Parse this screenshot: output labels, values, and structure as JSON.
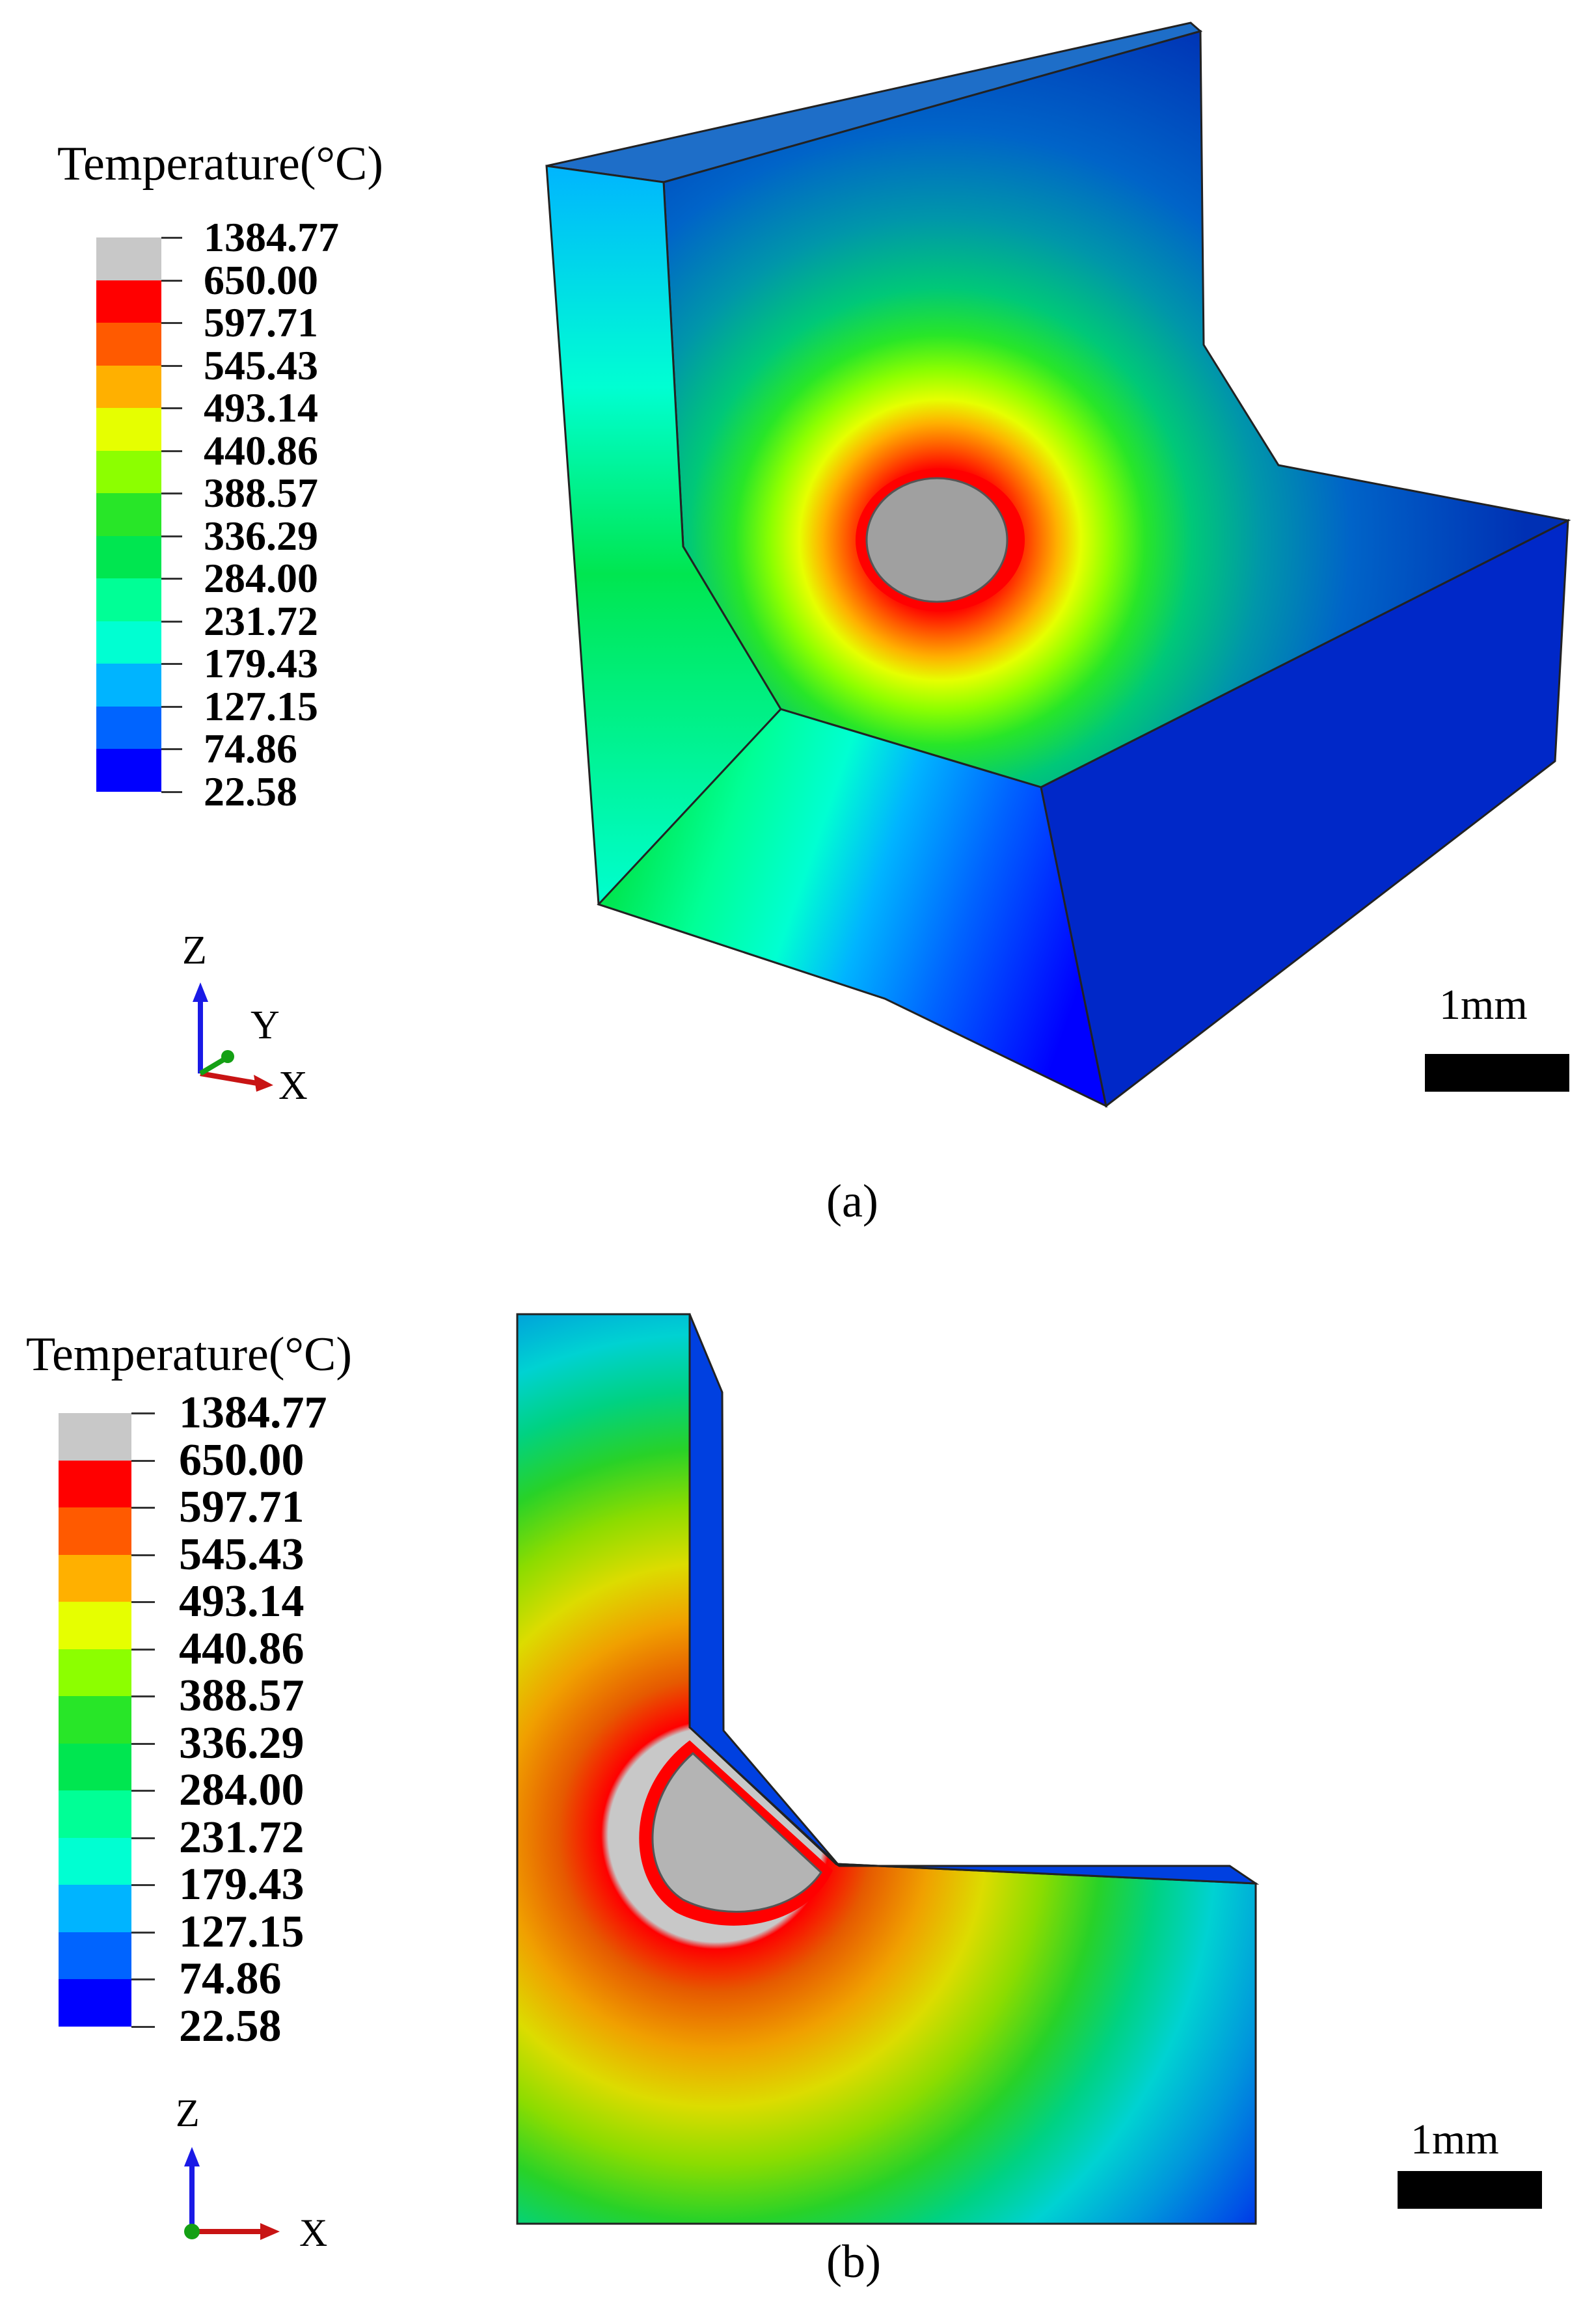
{
  "legend": {
    "title": "Temperature(°C)",
    "values": [
      "1384.77",
      "650.00",
      "597.71",
      "545.43",
      "493.14",
      "440.86",
      "388.57",
      "336.29",
      "284.00",
      "231.72",
      "179.43",
      "127.15",
      "74.86",
      "22.58"
    ],
    "colors": [
      "#c8c8c8",
      "#ff0000",
      "#ff5a00",
      "#ffb000",
      "#e6ff00",
      "#8cff00",
      "#28e628",
      "#00e650",
      "#00ff96",
      "#00ffd2",
      "#00b4ff",
      "#0064ff",
      "#0000ff"
    ]
  },
  "axes_a": {
    "z": "Z",
    "y": "Y",
    "x": "X"
  },
  "axes_b": {
    "z": "Z",
    "x": "X"
  },
  "scale_a": "1mm",
  "scale_b": "1mm",
  "caption_a": "(a)",
  "caption_b": "(b)"
}
